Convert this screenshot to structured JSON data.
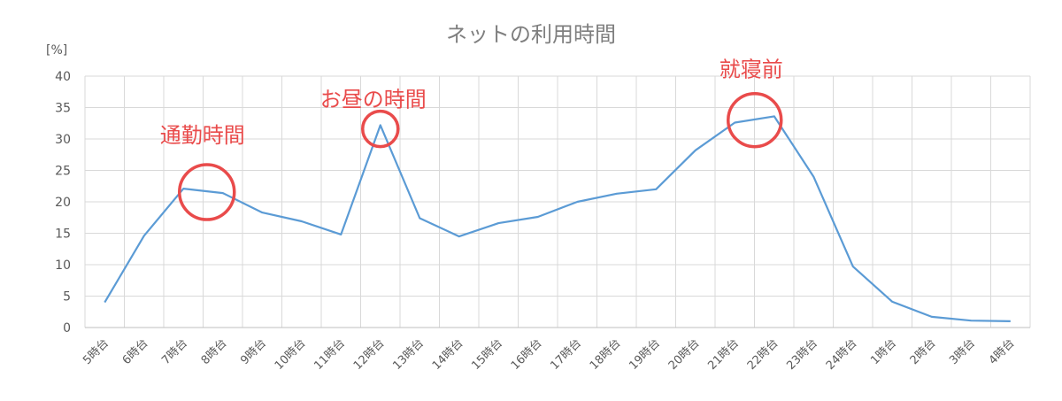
{
  "chart_data": {
    "type": "line",
    "title": "ネットの利用時間",
    "ylabel": "[%]",
    "xlabel": "",
    "ylim": [
      0,
      40
    ],
    "yticks": [
      0,
      5,
      10,
      15,
      20,
      25,
      30,
      35,
      40
    ],
    "grid": true,
    "categories": [
      "5時台",
      "6時台",
      "7時台",
      "8時台",
      "9時台",
      "10時台",
      "11時台",
      "12時台",
      "13時台",
      "14時台",
      "15時台",
      "16時台",
      "17時台",
      "18時台",
      "19時台",
      "20時台",
      "21時台",
      "22時台",
      "23時台",
      "24時台",
      "1時台",
      "2時台",
      "3時台",
      "4時台"
    ],
    "series": [
      {
        "color": "#5b9bd5",
        "values": [
          4.0,
          14.6,
          22.1,
          21.4,
          18.3,
          16.9,
          14.8,
          32.2,
          17.4,
          14.5,
          16.6,
          17.6,
          20.0,
          21.3,
          22.0,
          28.2,
          32.6,
          33.6,
          24.0,
          9.7,
          4.1,
          1.7,
          1.1,
          1.0
        ]
      }
    ],
    "annotations": [
      {
        "text": "通勤時間",
        "category": "8時台",
        "value": 21.4
      },
      {
        "text": "お昼の時間",
        "category": "12時台",
        "value": 31.6
      },
      {
        "text": "就寝前",
        "category": "22時台",
        "value": 33.0
      }
    ],
    "annotation_color": "#e94b4b"
  }
}
